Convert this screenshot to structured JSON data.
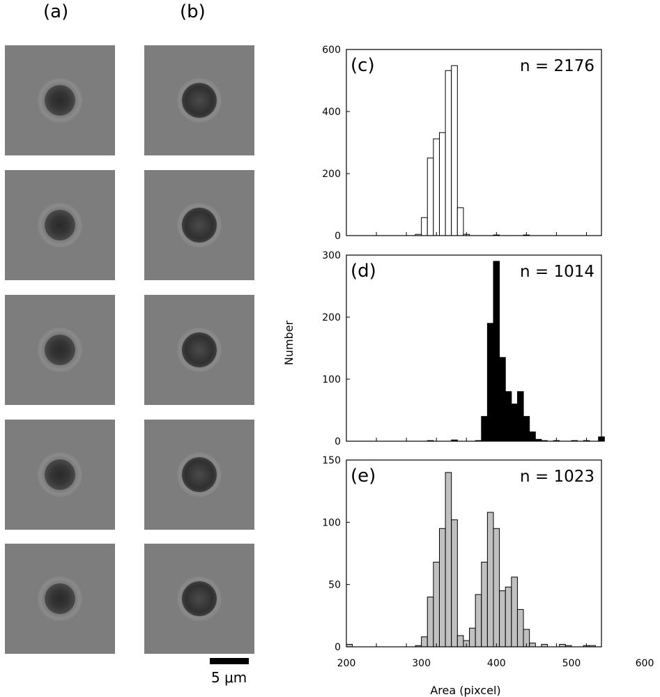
{
  "col_labels": {
    "a": "(a)",
    "b": "(b)"
  },
  "scale_bar": {
    "label": "5 μm"
  },
  "shared_axes": {
    "ylabel": "Number",
    "xlabel": "Area (pixcel)",
    "x_ticks": [
      "200",
      "300",
      "400",
      "500",
      "600"
    ],
    "xlim": [
      200,
      540
    ]
  },
  "chart_data": [
    {
      "type": "bar",
      "panel": "(c)",
      "n_label": "n = 2176",
      "fill": "#ffffff",
      "bin_width": 8,
      "ylim": [
        0,
        600
      ],
      "y_ticks": [
        0,
        200,
        400,
        600
      ],
      "x": [
        284,
        292,
        300,
        308,
        316,
        324,
        332,
        340,
        348,
        356,
        364,
        372,
        380,
        388,
        396,
        404,
        412,
        420,
        428,
        436,
        444
      ],
      "values": [
        0,
        4,
        58,
        250,
        312,
        332,
        532,
        548,
        90,
        4,
        0,
        0,
        0,
        0,
        2,
        0,
        0,
        0,
        0,
        2,
        0
      ]
    },
    {
      "type": "bar",
      "panel": "(d)",
      "n_label": "n = 1014",
      "fill": "#000000",
      "bin_width": 8,
      "ylim": [
        0,
        300
      ],
      "y_ticks": [
        0,
        100,
        200,
        300
      ],
      "x": [
        308,
        340,
        372,
        380,
        388,
        396,
        404,
        412,
        420,
        428,
        436,
        444,
        452,
        460,
        476,
        500,
        516,
        536
      ],
      "values": [
        1,
        2,
        1,
        40,
        190,
        290,
        135,
        80,
        60,
        80,
        40,
        15,
        3,
        1,
        1,
        1,
        1,
        7
      ]
    },
    {
      "type": "bar",
      "panel": "(e)",
      "n_label": "n = 1023",
      "fill": "#c0c0c0",
      "bin_width": 8,
      "ylim": [
        0,
        150
      ],
      "y_ticks": [
        0,
        50,
        100,
        150
      ],
      "x": [
        200,
        292,
        300,
        308,
        316,
        324,
        332,
        340,
        348,
        356,
        364,
        372,
        380,
        388,
        396,
        404,
        412,
        420,
        428,
        436,
        444,
        452,
        460,
        468,
        476,
        484,
        492,
        500,
        508,
        516,
        524
      ],
      "values": [
        2,
        1,
        8,
        40,
        68,
        95,
        140,
        102,
        9,
        5,
        15,
        42,
        68,
        108,
        95,
        45,
        48,
        56,
        30,
        14,
        3,
        0,
        2,
        0,
        0,
        2,
        1,
        0,
        0,
        1,
        1
      ]
    }
  ]
}
